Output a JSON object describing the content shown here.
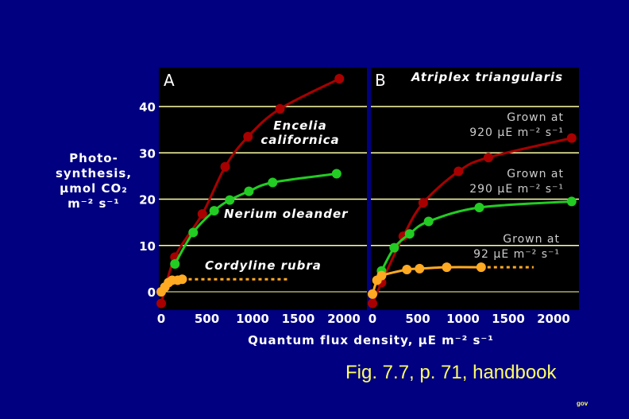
{
  "caption": "Fig. 7.7, p. 71, handbook",
  "footer_mark": "gov",
  "ylabel_lines": [
    "Photo-",
    "synthesis,",
    "μmol CO₂",
    "m⁻² s⁻¹"
  ],
  "xlabel": "Quantum flux density, μE m⁻² s⁻¹",
  "colors": {
    "background": "#000080",
    "panel": "#000000",
    "grid": "#ffffaa",
    "red": "#a80000",
    "green": "#22cc22",
    "orange": "#ffaa22",
    "caption": "#ffff66"
  },
  "chart_data": [
    {
      "panel": "A",
      "type": "line",
      "title": "",
      "xlim": [
        0,
        2200
      ],
      "ylim": [
        -3,
        48
      ],
      "xticks": [
        "0",
        "500",
        "1000",
        "1500",
        "2000"
      ],
      "yticks": [
        "0",
        "10",
        "20",
        "30",
        "40"
      ],
      "grid": true,
      "series": [
        {
          "name": "Encelia californica",
          "color": "red",
          "x": [
            0,
            150,
            450,
            700,
            950,
            1300,
            1950
          ],
          "y": [
            -2.5,
            7.5,
            16.8,
            27,
            33.5,
            39.5,
            46
          ]
        },
        {
          "name": "Nerium oleander",
          "color": "green",
          "x": [
            150,
            350,
            580,
            750,
            960,
            1220,
            1920
          ],
          "y": [
            6,
            12.8,
            17.5,
            19.8,
            21.7,
            23.6,
            25.5
          ]
        },
        {
          "name": "Cordyline rubra",
          "color": "orange",
          "x": [
            0,
            40,
            80,
            120,
            180,
            230
          ],
          "y": [
            0,
            1,
            2,
            2.5,
            2.5,
            2.7
          ],
          "dashed_extension_to": 1400
        }
      ],
      "labels": [
        {
          "lines": [
            "Encelia",
            "californica"
          ],
          "series": "Encelia californica"
        },
        {
          "lines": [
            "Nerium oleander"
          ],
          "series": "Nerium oleander"
        },
        {
          "lines": [
            "Cordyline rubra"
          ],
          "series": "Cordyline rubra"
        }
      ]
    },
    {
      "panel": "B",
      "type": "line",
      "title": "Atriplex triangularis",
      "xlim": [
        0,
        2250
      ],
      "ylim": [
        -3,
        48
      ],
      "xticks": [
        "0",
        "500",
        "1000",
        "1500",
        "2000"
      ],
      "grid": true,
      "series": [
        {
          "name": "Grown at 920 μE m⁻² s⁻¹",
          "color": "red",
          "x": [
            0,
            100,
            340,
            560,
            950,
            1280,
            2200
          ],
          "y": [
            -2.5,
            2,
            12,
            19.2,
            26,
            29,
            33.2
          ]
        },
        {
          "name": "Grown at 290 μE m⁻² s⁻¹",
          "color": "green",
          "x": [
            100,
            240,
            410,
            620,
            1180,
            2200
          ],
          "y": [
            4.5,
            9.5,
            12.5,
            15.2,
            18.2,
            19.5
          ]
        },
        {
          "name": "Grown at 92 μE m⁻² s⁻¹",
          "color": "orange",
          "x": [
            0,
            50,
            100,
            380,
            520,
            820,
            1200
          ],
          "y": [
            -0.5,
            2.5,
            3.5,
            4.8,
            5,
            5.3,
            5.3
          ],
          "dashed_extension_to": 1780
        }
      ],
      "labels": [
        {
          "lines": [
            "Grown at",
            "920 μE m⁻² s⁻¹"
          ]
        },
        {
          "lines": [
            "Grown at",
            "290 μE m⁻² s⁻¹"
          ]
        },
        {
          "lines": [
            "Grown at",
            "92 μE m⁻² s⁻¹"
          ]
        }
      ]
    }
  ]
}
